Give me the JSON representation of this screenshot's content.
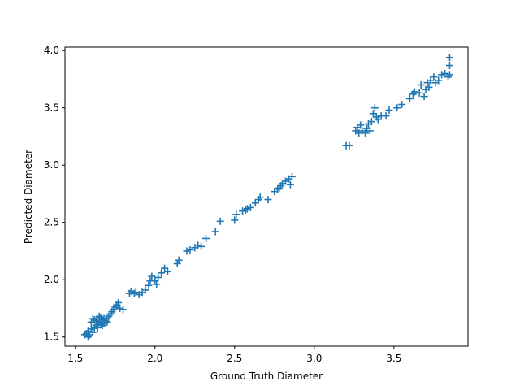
{
  "chart_data": {
    "type": "scatter",
    "title": "",
    "xlabel": "Ground Truth Diameter",
    "ylabel": "Predicted Diameter",
    "xlim": [
      1.435,
      3.965
    ],
    "ylim": [
      1.42,
      4.03
    ],
    "xticks": [
      1.5,
      2.0,
      2.5,
      3.0,
      3.5
    ],
    "yticks": [
      1.5,
      2.0,
      2.5,
      3.0,
      3.5,
      4.0
    ],
    "tick_labels_x": [
      "1.5",
      "2.0",
      "2.5",
      "3.0",
      "3.5"
    ],
    "tick_labels_y": [
      "1.5",
      "2.0",
      "2.5",
      "3.0",
      "3.5",
      "4.0"
    ],
    "grid": false,
    "marker": "plus",
    "color": "#1f77b4",
    "series": [
      {
        "points": [
          [
            1.56,
            1.52
          ],
          [
            1.57,
            1.53
          ],
          [
            1.58,
            1.55
          ],
          [
            1.59,
            1.52
          ],
          [
            1.6,
            1.57
          ],
          [
            1.58,
            1.5
          ],
          [
            1.61,
            1.54
          ],
          [
            1.62,
            1.58
          ],
          [
            1.63,
            1.6
          ],
          [
            1.64,
            1.62
          ],
          [
            1.62,
            1.65
          ],
          [
            1.65,
            1.63
          ],
          [
            1.66,
            1.61
          ],
          [
            1.67,
            1.65
          ],
          [
            1.68,
            1.62
          ],
          [
            1.66,
            1.67
          ],
          [
            1.69,
            1.64
          ],
          [
            1.7,
            1.66
          ],
          [
            1.71,
            1.68
          ],
          [
            1.72,
            1.7
          ],
          [
            1.73,
            1.72
          ],
          [
            1.74,
            1.74
          ],
          [
            1.75,
            1.76
          ],
          [
            1.76,
            1.78
          ],
          [
            1.77,
            1.8
          ],
          [
            1.78,
            1.75
          ],
          [
            1.8,
            1.74
          ],
          [
            1.6,
            1.63
          ],
          [
            1.61,
            1.66
          ],
          [
            1.63,
            1.64
          ],
          [
            1.64,
            1.58
          ],
          [
            1.65,
            1.68
          ],
          [
            1.67,
            1.6
          ],
          [
            1.68,
            1.66
          ],
          [
            1.7,
            1.63
          ],
          [
            1.84,
            1.88
          ],
          [
            1.85,
            1.9
          ],
          [
            1.87,
            1.88
          ],
          [
            1.88,
            1.89
          ],
          [
            1.9,
            1.87
          ],
          [
            1.92,
            1.89
          ],
          [
            1.94,
            1.91
          ],
          [
            1.96,
            1.95
          ],
          [
            1.97,
            1.99
          ],
          [
            1.98,
            2.03
          ],
          [
            2.0,
            1.99
          ],
          [
            2.01,
            1.96
          ],
          [
            2.02,
            2.02
          ],
          [
            2.04,
            2.06
          ],
          [
            2.06,
            2.1
          ],
          [
            2.08,
            2.07
          ],
          [
            2.14,
            2.14
          ],
          [
            2.15,
            2.17
          ],
          [
            2.2,
            2.25
          ],
          [
            2.22,
            2.26
          ],
          [
            2.25,
            2.28
          ],
          [
            2.27,
            2.3
          ],
          [
            2.29,
            2.29
          ],
          [
            2.32,
            2.36
          ],
          [
            2.38,
            2.42
          ],
          [
            2.41,
            2.51
          ],
          [
            2.5,
            2.52
          ],
          [
            2.51,
            2.57
          ],
          [
            2.55,
            2.6
          ],
          [
            2.57,
            2.61
          ],
          [
            2.58,
            2.62
          ],
          [
            2.6,
            2.63
          ],
          [
            2.63,
            2.67
          ],
          [
            2.65,
            2.7
          ],
          [
            2.66,
            2.72
          ],
          [
            2.71,
            2.7
          ],
          [
            2.75,
            2.77
          ],
          [
            2.77,
            2.79
          ],
          [
            2.78,
            2.8
          ],
          [
            2.79,
            2.82
          ],
          [
            2.8,
            2.84
          ],
          [
            2.82,
            2.86
          ],
          [
            2.84,
            2.88
          ],
          [
            2.85,
            2.83
          ],
          [
            2.86,
            2.9
          ],
          [
            3.2,
            3.17
          ],
          [
            3.22,
            3.17
          ],
          [
            3.26,
            3.3
          ],
          [
            3.27,
            3.33
          ],
          [
            3.28,
            3.28
          ],
          [
            3.29,
            3.35
          ],
          [
            3.3,
            3.3
          ],
          [
            3.32,
            3.28
          ],
          [
            3.33,
            3.32
          ],
          [
            3.34,
            3.36
          ],
          [
            3.35,
            3.3
          ],
          [
            3.36,
            3.38
          ],
          [
            3.37,
            3.45
          ],
          [
            3.38,
            3.5
          ],
          [
            3.39,
            3.42
          ],
          [
            3.4,
            3.4
          ],
          [
            3.42,
            3.43
          ],
          [
            3.45,
            3.43
          ],
          [
            3.47,
            3.48
          ],
          [
            3.52,
            3.5
          ],
          [
            3.55,
            3.53
          ],
          [
            3.6,
            3.58
          ],
          [
            3.62,
            3.62
          ],
          [
            3.63,
            3.64
          ],
          [
            3.66,
            3.63
          ],
          [
            3.67,
            3.7
          ],
          [
            3.69,
            3.6
          ],
          [
            3.7,
            3.66
          ],
          [
            3.71,
            3.72
          ],
          [
            3.72,
            3.68
          ],
          [
            3.73,
            3.74
          ],
          [
            3.75,
            3.77
          ],
          [
            3.76,
            3.72
          ],
          [
            3.78,
            3.74
          ],
          [
            3.8,
            3.79
          ],
          [
            3.82,
            3.8
          ],
          [
            3.84,
            3.77
          ],
          [
            3.85,
            3.79
          ],
          [
            3.85,
            3.87
          ],
          [
            3.85,
            3.94
          ]
        ]
      }
    ]
  }
}
